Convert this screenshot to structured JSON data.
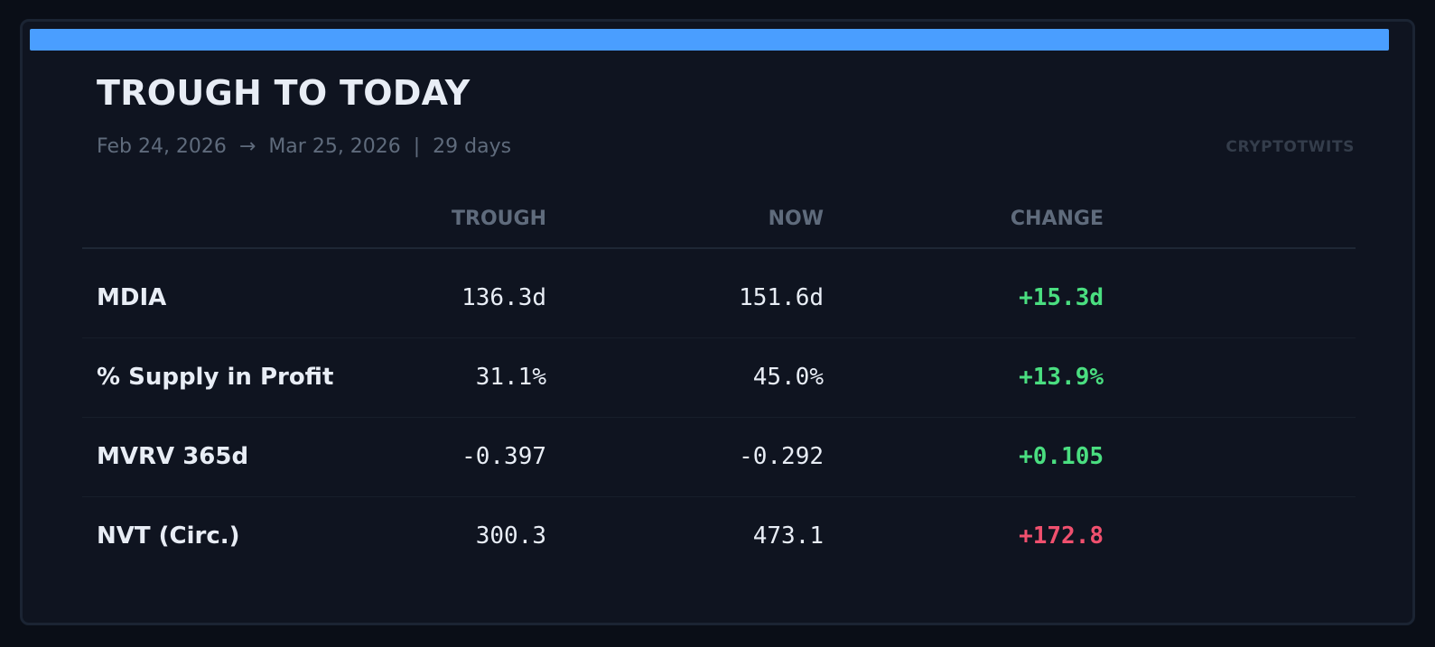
{
  "title": "TROUGH TO TODAY",
  "subtitle": "Feb 24, 2026  →  Mar 25, 2026  |  29 days",
  "brand": "CRYPTOTWITS",
  "colors": {
    "background": "#0a0e17",
    "card": "#0f1420",
    "accent": "#4a9eff",
    "positive": "#4ade80",
    "negative": "#f0506e",
    "text": "#e8edf5",
    "muted": "#5f6b7c"
  },
  "table": {
    "columns": {
      "trough": "TROUGH",
      "now": "NOW",
      "change": "CHANGE"
    },
    "rows": [
      {
        "label": "MDIA",
        "trough": "136.3d",
        "now": "151.6d",
        "change": "+15.3d",
        "change_status": "positive"
      },
      {
        "label": "% Supply in Profit",
        "trough": "31.1%",
        "now": "45.0%",
        "change": "+13.9%",
        "change_status": "positive"
      },
      {
        "label": "MVRV 365d",
        "trough": "-0.397",
        "now": "-0.292",
        "change": "+0.105",
        "change_status": "positive"
      },
      {
        "label": "NVT (Circ.)",
        "trough": "300.3",
        "now": "473.1",
        "change": "+172.8",
        "change_status": "negative"
      }
    ]
  }
}
